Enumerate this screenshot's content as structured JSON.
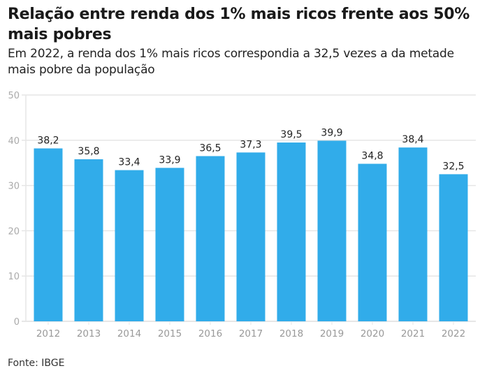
{
  "title": "Relação entre renda dos 1% mais ricos frente aos 50% mais pobres",
  "subtitle": "Em 2022, a renda dos 1% mais ricos correspondia a 32,5 vezes a da metade mais pobre da população",
  "source": "Fonte: IBGE",
  "colors": {
    "bar": "#31acea",
    "grid": "#e6e6e6",
    "axis": "#dddddd"
  },
  "chart_data": {
    "type": "bar",
    "title": "Relação entre renda dos 1% mais ricos frente aos 50% mais pobres",
    "subtitle": "Em 2022, a renda dos 1% mais ricos correspondia a 32,5 vezes a da metade mais pobre da população",
    "xlabel": "",
    "ylabel": "",
    "categories": [
      "2012",
      "2013",
      "2014",
      "2015",
      "2016",
      "2017",
      "2018",
      "2019",
      "2020",
      "2021",
      "2022"
    ],
    "values": [
      38.2,
      35.8,
      33.4,
      33.9,
      36.5,
      37.3,
      39.5,
      39.9,
      34.8,
      38.4,
      32.5
    ],
    "data_labels": [
      "38,2",
      "35,8",
      "33,4",
      "33,9",
      "36,5",
      "37,3",
      "39,5",
      "39,9",
      "34,8",
      "38,4",
      "32,5"
    ],
    "yticks": [
      0,
      10,
      20,
      30,
      40,
      50
    ],
    "ylim": [
      0,
      50
    ],
    "grid": true,
    "legend": "none"
  }
}
